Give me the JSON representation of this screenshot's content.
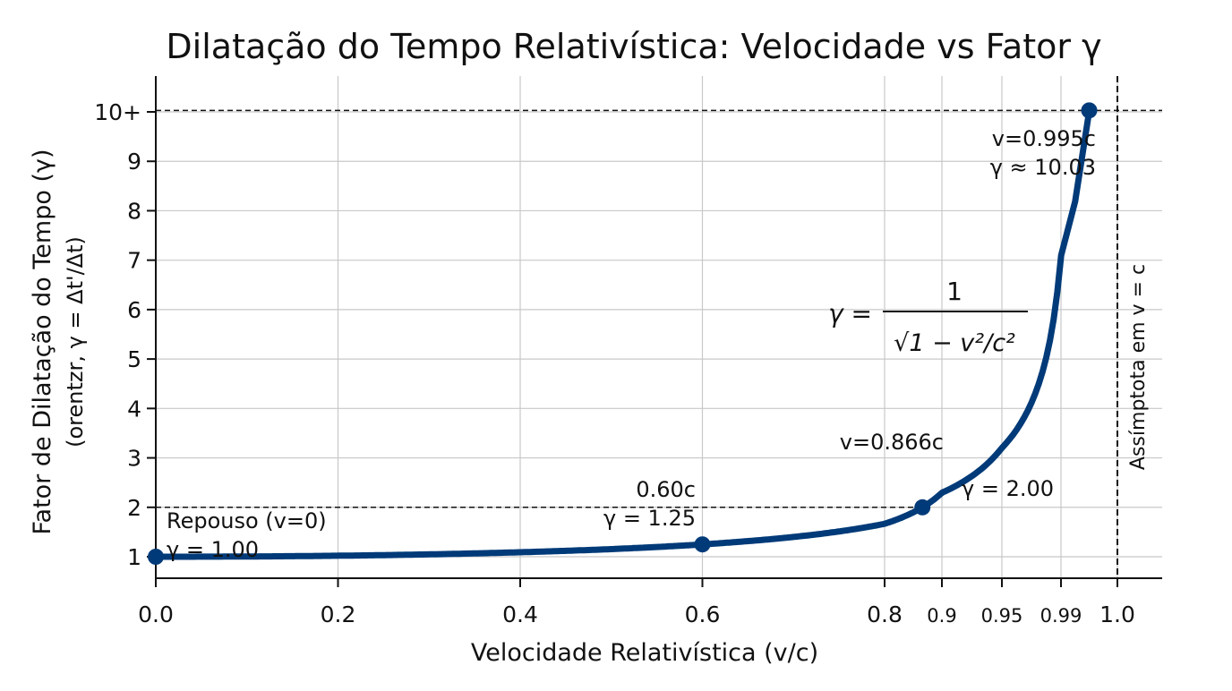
{
  "chart_data": {
    "type": "line",
    "title": "Dilatação do Tempo Relativística: Velocidade vs Fator γ",
    "xlabel": "Velocidade Relativística (v/c)",
    "ylabel": "Fator de Dilatação do Tempo (γ)",
    "ylabel_sub": "(orentzr, γ = Δt'/Δt)",
    "x_ticks": [
      {
        "value": 0.0,
        "label": "0.0"
      },
      {
        "value": 0.2,
        "label": "0.2"
      },
      {
        "value": 0.4,
        "label": "0.4"
      },
      {
        "value": 0.6,
        "label": "0.6"
      },
      {
        "value": 0.8,
        "label": "0.8"
      },
      {
        "value": 0.9,
        "label": "0.9"
      },
      {
        "value": 0.95,
        "label": "0.95"
      },
      {
        "value": 0.99,
        "label": "0.99"
      },
      {
        "value": 1.0,
        "label": "1.0"
      }
    ],
    "y_ticks": [
      {
        "value": 1,
        "label": "1"
      },
      {
        "value": 2,
        "label": "2"
      },
      {
        "value": 3,
        "label": "3"
      },
      {
        "value": 4,
        "label": "4"
      },
      {
        "value": 5,
        "label": "5"
      },
      {
        "value": 6,
        "label": "6"
      },
      {
        "value": 7,
        "label": "7"
      },
      {
        "value": 8,
        "label": "8"
      },
      {
        "value": 9,
        "label": "9"
      },
      {
        "value": 10,
        "label": "10+"
      }
    ],
    "xlim": [
      0,
      1.02
    ],
    "ylim": [
      0.6,
      10.8
    ],
    "grid": true,
    "series_color": "#003a78",
    "formula": "γ = 1 / √(1 − v²/c²)",
    "formula_parts": {
      "lhs": "γ =",
      "numerator": "1",
      "denominator": "√1 − v²/c²"
    },
    "points": [
      {
        "v": 0.0,
        "gamma": 1.0,
        "label_lines": [
          "Repouso (v=0)",
          "γ = 1.00"
        ]
      },
      {
        "v": 0.6,
        "gamma": 1.25,
        "label_lines": [
          "0.60c",
          "γ = 1.25"
        ]
      },
      {
        "v": 0.866,
        "gamma": 2.0,
        "label_lines": [
          "v=0.866c",
          "γ = 2.00"
        ]
      },
      {
        "v": 0.995,
        "gamma": 10.03,
        "label_lines": [
          "v=0.995c",
          "γ ≈ 10.03"
        ]
      }
    ],
    "asymptote": {
      "v": 1.0,
      "label": "Assímptota em v = c"
    }
  }
}
